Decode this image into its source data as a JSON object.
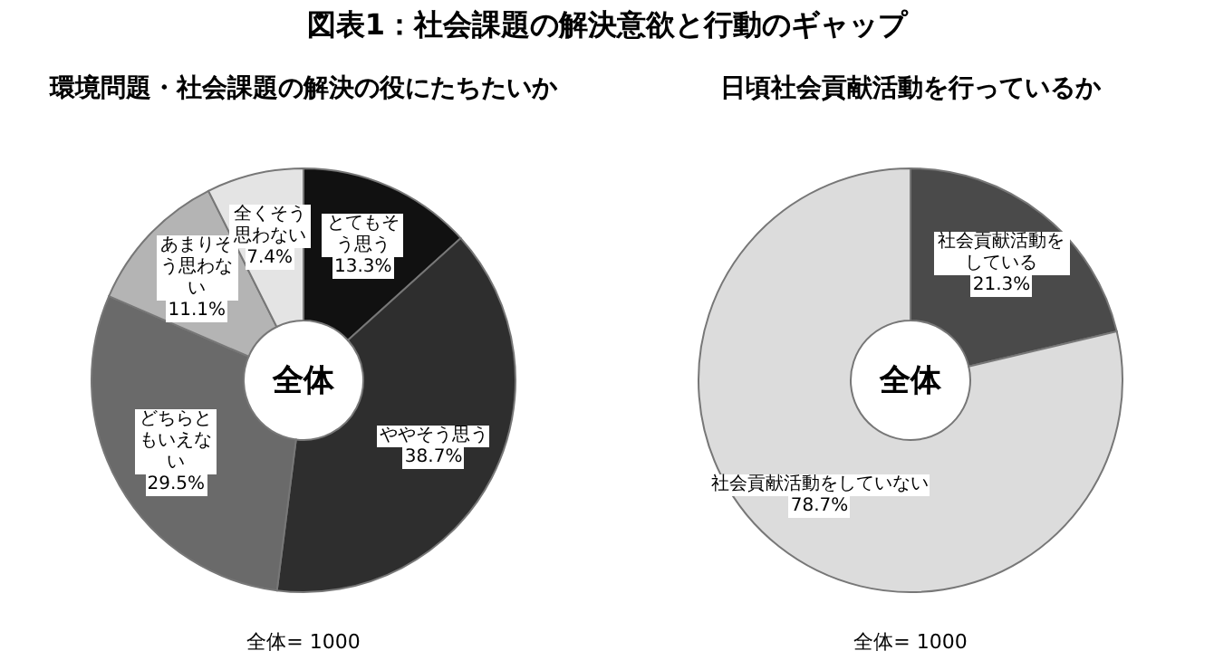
{
  "chart_data": [
    {
      "type": "donut",
      "title": "図表1：社会課題の解決意欲と行動のギャップ",
      "subtitle": "環境問題・社会課題の解決の役にたちたいか",
      "categories": [
        "とてもそう思う",
        "ややそう思う",
        "どちらともいえない",
        "あまりそう思わない",
        "全くそう思わない"
      ],
      "values": [
        13.3,
        38.7,
        29.5,
        11.1,
        7.4
      ],
      "value_labels": [
        "13.3%",
        "38.7%",
        "29.5%",
        "11.1%",
        "7.4%"
      ],
      "colors": [
        "#111111",
        "#2e2e2e",
        "#6a6a6a",
        "#b4b4b4",
        "#e4e4e4"
      ],
      "annotations": [
        "全体",
        "全体= 1000"
      ]
    },
    {
      "type": "donut",
      "title": "日頃社会貢献活動を行っているか",
      "categories": [
        "社会貢献活動をしている",
        "社会貢献活動をしていない"
      ],
      "values": [
        21.3,
        78.7
      ],
      "value_labels": [
        "21.3%",
        "78.7%"
      ],
      "colors": [
        "#4a4a4a",
        "#dcdcdc"
      ],
      "annotations": [
        "全体",
        "全体= 1000"
      ]
    }
  ]
}
